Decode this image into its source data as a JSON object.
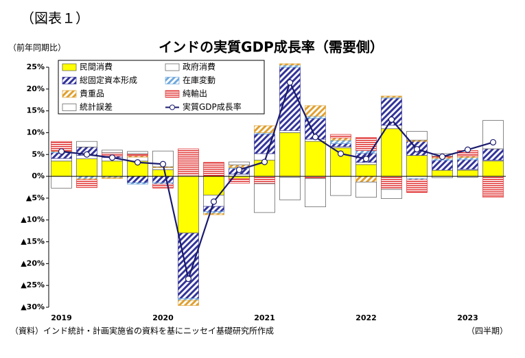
{
  "figure_label": "（図表１）",
  "chart_data": {
    "type": "bar",
    "title": "インドの実質GDP成長率（需要側）",
    "y_label": "（前年同期比）",
    "x_label": "（四半期）",
    "source": "（資料）インド統計・計画実施省の資料を基にニッセイ基礎研究所作成",
    "stacked": true,
    "categories": [
      "2019",
      null,
      null,
      null,
      "2020",
      null,
      null,
      null,
      "2021",
      null,
      null,
      null,
      "2022",
      null,
      null,
      null,
      "2023",
      null
    ],
    "ylim": [
      -30,
      25
    ],
    "yticks": [
      {
        "value": 25,
        "label": "25%"
      },
      {
        "value": 20,
        "label": "20%"
      },
      {
        "value": 15,
        "label": "15%"
      },
      {
        "value": 10,
        "label": "10%"
      },
      {
        "value": 5,
        "label": "5%"
      },
      {
        "value": 0,
        "label": "0%"
      },
      {
        "value": -5,
        "label": "▲5%"
      },
      {
        "value": -10,
        "label": "▲10%"
      },
      {
        "value": -15,
        "label": "▲15%"
      },
      {
        "value": -20,
        "label": "▲20%"
      },
      {
        "value": -25,
        "label": "▲25%"
      },
      {
        "value": -30,
        "label": "▲30%"
      }
    ],
    "legend": "upper left",
    "series": [
      {
        "name": "民間消費",
        "color": "#ffff00",
        "values": [
          3.5,
          4.0,
          3.5,
          3.5,
          1.5,
          -13.0,
          -4.3,
          -0.5,
          3.7,
          10.0,
          8.0,
          6.5,
          2.7,
          10.9,
          4.8,
          1.4,
          1.4,
          3.5
        ]
      },
      {
        "name": "政府消費",
        "color": "#ffffff",
        "values": [
          0.6,
          0.8,
          0.8,
          0.9,
          0.5,
          0.3,
          -2.6,
          0.5,
          1.5,
          0.5,
          0.5,
          0.3,
          0.5,
          0.8,
          -0.5,
          -0.3,
          0.2,
          0.2
        ]
      },
      {
        "name": "総固定資本形成",
        "color": "#33339a",
        "pattern": "diagonal",
        "values": [
          1.3,
          1.9,
          0.3,
          -1.5,
          -1.5,
          -15.0,
          -1.2,
          1.3,
          4.5,
          14.5,
          4.8,
          0.7,
          2.1,
          6.2,
          3.2,
          2.3,
          2.2,
          2.6
        ]
      },
      {
        "name": "在庫変動",
        "color": "#6fa8dc",
        "pattern": "diagonal",
        "values": [
          0.3,
          -0.6,
          -0.3,
          -0.3,
          -0.3,
          -0.4,
          -0.4,
          0.2,
          0.3,
          0.5,
          0.5,
          0.8,
          0.6,
          0.2,
          -0.3,
          0.4,
          0.5,
          0.0
        ]
      },
      {
        "name": "貴重品",
        "color": "#e0a030",
        "pattern": "diagonal",
        "values": [
          0.1,
          -0.2,
          -0.2,
          0.3,
          0.2,
          -1.2,
          -0.3,
          0.6,
          1.6,
          0.3,
          2.4,
          0.5,
          -1.3,
          0.3,
          0.3,
          0.3,
          0.3,
          0.0
        ]
      },
      {
        "name": "純輸出",
        "color": "#e03030",
        "pattern": "horizontal",
        "values": [
          2.2,
          -1.8,
          0.8,
          0.5,
          -0.9,
          6.0,
          3.2,
          -1.1,
          -1.7,
          -0.2,
          -0.5,
          0.8,
          3.0,
          -3.0,
          -2.9,
          0.2,
          1.3,
          -4.8
        ]
      },
      {
        "name": "統計誤差",
        "color": "#ffffff",
        "values": [
          -2.7,
          1.3,
          0.6,
          0.5,
          3.6,
          0.0,
          0.0,
          0.7,
          -6.6,
          -5.2,
          -6.5,
          -4.4,
          -3.5,
          -2.1,
          2.0,
          0.6,
          -0.2,
          6.5
        ]
      },
      {
        "name": "実質GDP成長率",
        "color": "#1a1a6e",
        "type": "line",
        "values": [
          5.7,
          5.0,
          4.3,
          3.2,
          2.8,
          -23.5,
          -5.8,
          1.5,
          3.3,
          21.5,
          9.0,
          5.2,
          4.0,
          13.0,
          6.2,
          4.5,
          6.1,
          7.8
        ]
      }
    ]
  }
}
